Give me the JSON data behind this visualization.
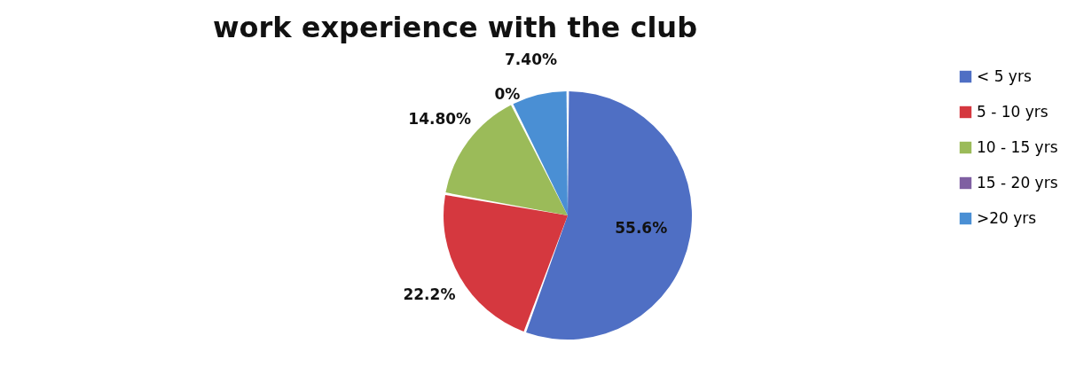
{
  "chart_data": {
    "type": "pie",
    "title": "work experience with the club",
    "categories": [
      "< 5 yrs",
      "5 - 10 yrs",
      "10 - 15 yrs",
      "15 - 20 yrs",
      ">20 yrs"
    ],
    "values": [
      55.6,
      22.2,
      14.8,
      0,
      7.4
    ],
    "value_labels": [
      "55.6%",
      "22.2%",
      "14.80%",
      "0%",
      "7.40%"
    ],
    "colors": [
      "#4f6fc4",
      "#d5383f",
      "#9bbb59",
      "#7f5fa2",
      "#4a8fd4"
    ],
    "legend": "right"
  }
}
